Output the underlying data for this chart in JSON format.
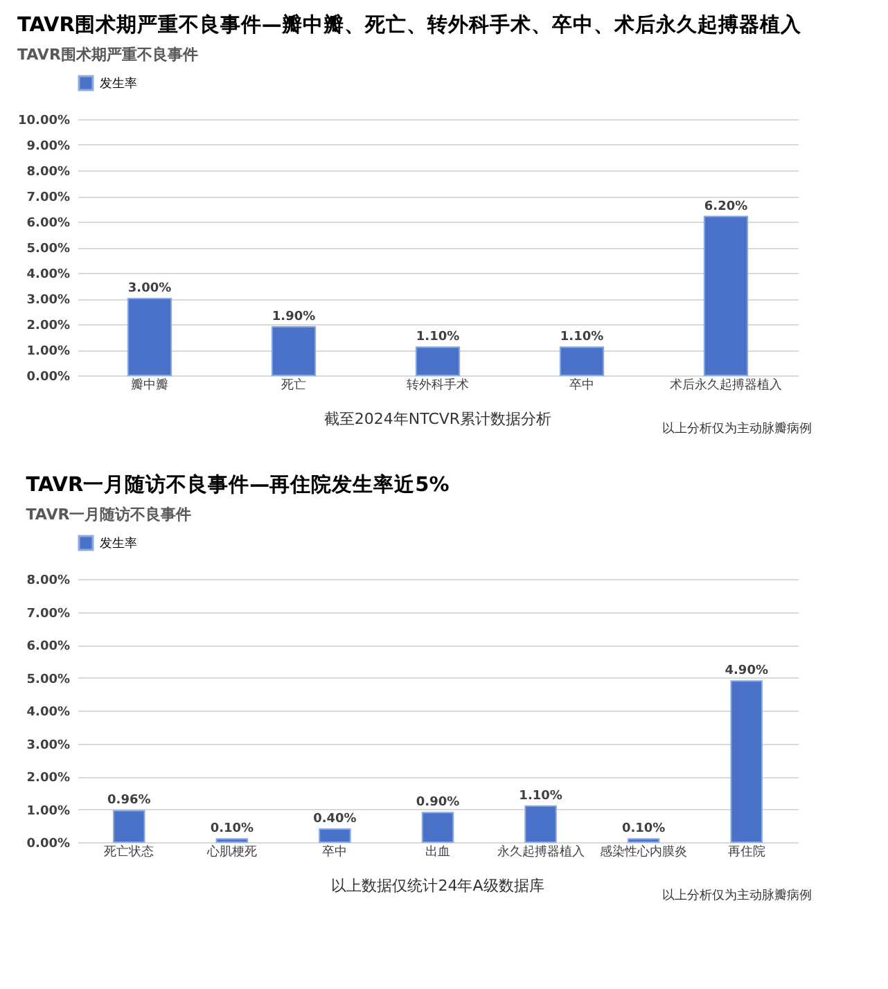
{
  "chart_data": [
    {
      "type": "bar",
      "title": "TAVR围术期严重不良事件—瓣中瓣、死亡、转外科手术、卒中、术后永久起搏器植入",
      "subtitle": "TAVR围术期严重不良事件",
      "categories": [
        "瓣中瓣",
        "死亡",
        "转外科手术",
        "卒中",
        "术后永久起搏器植入"
      ],
      "series": [
        {
          "name": "发生率",
          "color": "#4a72c8",
          "values": [
            3.0,
            1.9,
            1.1,
            1.1,
            6.2
          ],
          "value_labels": [
            "3.00%",
            "1.90%",
            "1.10%",
            "1.10%",
            "6.20%"
          ]
        }
      ],
      "ylim": [
        0,
        10
      ],
      "yticks": [
        {
          "value": 0,
          "label": "0.00%"
        },
        {
          "value": 1,
          "label": "1.00%"
        },
        {
          "value": 2,
          "label": "2.00%"
        },
        {
          "value": 3,
          "label": "3.00%"
        },
        {
          "value": 4,
          "label": "4.00%"
        },
        {
          "value": 5,
          "label": "5.00%"
        },
        {
          "value": 6,
          "label": "6.00%"
        },
        {
          "value": 7,
          "label": "7.00%"
        },
        {
          "value": 8,
          "label": "8.00%"
        },
        {
          "value": 9,
          "label": "9.00%"
        },
        {
          "value": 10,
          "label": "10.00%"
        }
      ],
      "grid": "y",
      "legend": "top",
      "annotations": [
        "截至2024年NTCVR累计数据分析",
        "以上分析仅为主动脉瓣病例"
      ]
    },
    {
      "type": "bar",
      "title": "TAVR一月随访不良事件—再住院发生率近5%",
      "subtitle": "TAVR一月随访不良事件",
      "categories": [
        "死亡状态",
        "心肌梗死",
        "卒中",
        "出血",
        "永久起搏器植入",
        "感染性心内膜炎",
        "再住院"
      ],
      "series": [
        {
          "name": "发生率",
          "color": "#4a72c8",
          "values": [
            0.96,
            0.1,
            0.4,
            0.9,
            1.1,
            0.1,
            4.9
          ],
          "value_labels": [
            "0.96%",
            "0.10%",
            "0.40%",
            "0.90%",
            "1.10%",
            "0.10%",
            "4.90%"
          ]
        }
      ],
      "ylim": [
        0,
        8
      ],
      "yticks": [
        {
          "value": 0,
          "label": "0.00%"
        },
        {
          "value": 1,
          "label": "1.00%"
        },
        {
          "value": 2,
          "label": "2.00%"
        },
        {
          "value": 3,
          "label": "3.00%"
        },
        {
          "value": 4,
          "label": "4.00%"
        },
        {
          "value": 5,
          "label": "5.00%"
        },
        {
          "value": 6,
          "label": "6.00%"
        },
        {
          "value": 7,
          "label": "7.00%"
        },
        {
          "value": 8,
          "label": "8.00%"
        }
      ],
      "grid": "y",
      "legend": "top",
      "annotations": [
        "以上数据仅统计24年A级数据库",
        "以上分析仅为主动脉瓣病例"
      ]
    }
  ]
}
